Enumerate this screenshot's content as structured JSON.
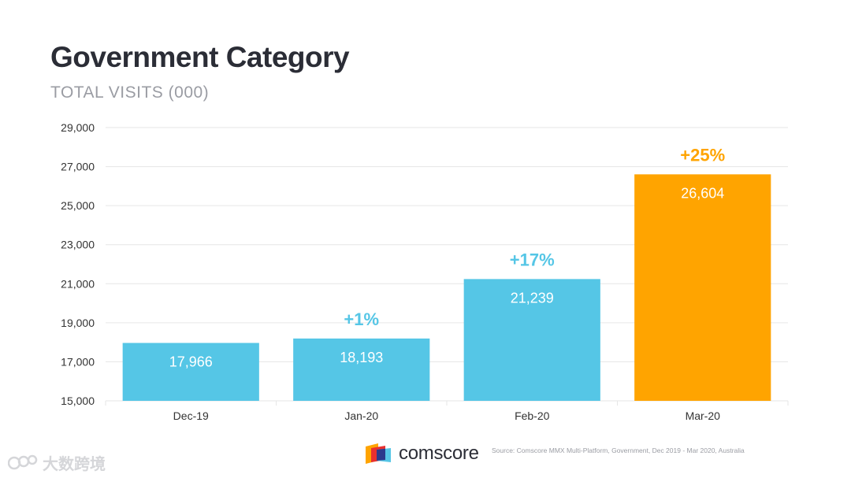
{
  "title": "Government Category",
  "subtitle": "TOTAL VISITS (000)",
  "colors": {
    "bar_default": "#55c6e6",
    "bar_highlight": "#ffa400",
    "change_default": "#55c6e6",
    "change_highlight": "#ffa400",
    "grid": "#e6e6e6",
    "axis_text": "#333333"
  },
  "chart_data": {
    "type": "bar",
    "title": "Government Category",
    "subtitle": "TOTAL VISITS (000)",
    "xlabel": "",
    "ylabel": "",
    "categories": [
      "Dec-19",
      "Jan-20",
      "Feb-20",
      "Mar-20"
    ],
    "values": [
      17966,
      18193,
      21239,
      26604
    ],
    "value_labels": [
      "17,966",
      "18,193",
      "21,239",
      "26,604"
    ],
    "change_labels": [
      "",
      "+1%",
      "+17%",
      "+25%"
    ],
    "highlight_index": 3,
    "ylim": [
      15000,
      29000
    ],
    "yticks": [
      15000,
      17000,
      19000,
      21000,
      23000,
      25000,
      27000,
      29000
    ],
    "ytick_labels": [
      "15,000",
      "17,000",
      "19,000",
      "21,000",
      "23,000",
      "25,000",
      "27,000",
      "29,000"
    ],
    "grid": true
  },
  "footer": {
    "brand": "comscore",
    "source": "Source: Comscore MMX Multi-Platform, Government, Dec 2019 - Mar 2020, Australia"
  },
  "watermark": {
    "text": "大数跨境"
  }
}
